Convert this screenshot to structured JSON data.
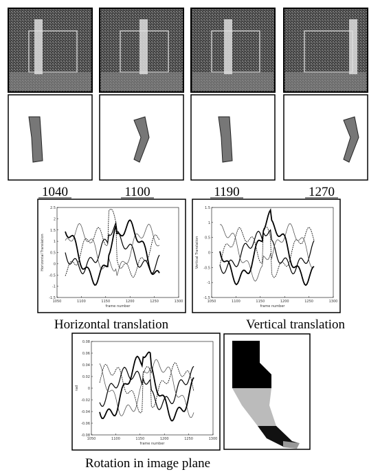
{
  "frames": [
    {
      "label": "1040"
    },
    {
      "label": "1100"
    },
    {
      "label": "1190"
    },
    {
      "label": "1270"
    }
  ],
  "plots": [
    {
      "caption": "Horizontal translation",
      "y_axis_label": "Horizontal Translation",
      "x_axis_label": "frame number",
      "xticks": [
        1050,
        1100,
        1150,
        1200,
        1250,
        1300
      ],
      "yticks": [
        -1.5,
        -1,
        -0.5,
        0,
        0.5,
        1,
        1.5,
        2,
        2.5
      ]
    },
    {
      "caption": "Vertical translation",
      "y_axis_label": "Vertical Translation",
      "x_axis_label": "frame number",
      "xticks": [
        1050,
        1100,
        1150,
        1200,
        1250,
        1300
      ],
      "yticks": [
        -1.5,
        -1,
        -0.5,
        0,
        0.5,
        1,
        1.5
      ]
    },
    {
      "caption": "Rotation in image plane",
      "y_axis_label": "rad",
      "x_axis_label": "frame number",
      "xticks": [
        1050,
        1100,
        1150,
        1200,
        1250,
        1300
      ],
      "yticks": [
        -0.08,
        -0.06,
        -0.04,
        -0.02,
        0,
        0.02,
        0.04,
        0.06,
        0.08
      ]
    }
  ]
}
